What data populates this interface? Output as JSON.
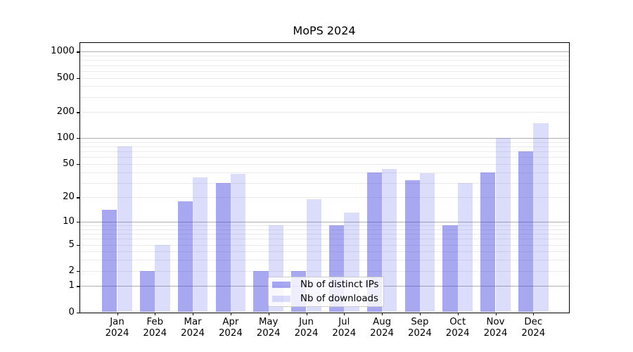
{
  "chart_data": {
    "type": "bar",
    "title": "MoPS 2024",
    "xlabel": "",
    "ylabel": "",
    "categories": [
      "Jan",
      "Feb",
      "Mar",
      "Apr",
      "May",
      "Jun",
      "Jul",
      "Aug",
      "Sep",
      "Oct",
      "Nov",
      "Dec"
    ],
    "category_year": "2024",
    "series": [
      {
        "name": "Nb of distinct IPs",
        "color": "#a8a8f2",
        "fill_rgba": "rgba(62,62,225,0.45)",
        "values": [
          14,
          2,
          18,
          30,
          2,
          2,
          9,
          40,
          32,
          9,
          40,
          70
        ]
      },
      {
        "name": "Nb of downloads",
        "color": "#dcdcfa",
        "fill_rgba": "rgba(80,80,235,0.20)",
        "values": [
          80,
          5,
          35,
          38,
          9,
          19,
          13,
          44,
          39,
          30,
          100,
          150
        ]
      }
    ],
    "yscale": "log1p",
    "y_ticks": [
      0,
      1,
      2,
      5,
      10,
      20,
      50,
      100,
      200,
      500,
      1000
    ],
    "ylim": [
      0,
      1285
    ],
    "grid": "horizontal, major at 1/10/100/1000, minor at 2-9 per decade",
    "legend_position": "inside plot, lower center-right",
    "major_grid_color": "#b0b0b0",
    "minor_grid_color": "#ebebeb"
  }
}
